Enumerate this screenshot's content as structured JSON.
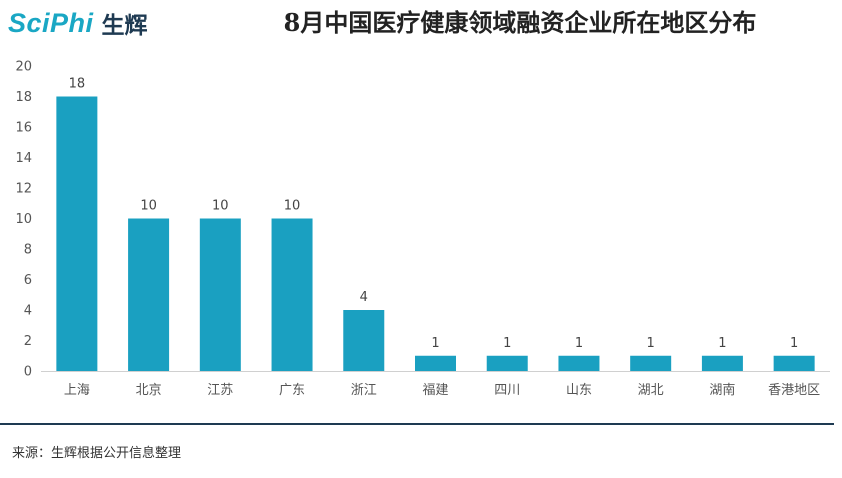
{
  "header": {
    "logo_word": "SciPhi",
    "logo_cn": "生辉",
    "title": "8月中国医疗健康领域融资企业所在地区分布"
  },
  "footer": {
    "source": "来源：生辉根据公开信息整理"
  },
  "colors": {
    "bar": "#1aa0c1",
    "brand": "#1aa7c4",
    "rule": "#1e3a52"
  },
  "chart_data": {
    "type": "bar",
    "title": "8月中国医疗健康领域融资企业所在地区分布",
    "categories": [
      "上海",
      "北京",
      "江苏",
      "广东",
      "浙江",
      "福建",
      "四川",
      "山东",
      "湖北",
      "湖南",
      "香港地区"
    ],
    "values": [
      18,
      10,
      10,
      10,
      4,
      1,
      1,
      1,
      1,
      1,
      1
    ],
    "ylim": [
      0,
      20
    ],
    "yticks": [
      0,
      2,
      4,
      6,
      8,
      10,
      12,
      14,
      16,
      18,
      20
    ],
    "xlabel": "",
    "ylabel": "",
    "grid": false,
    "data_labels": true
  }
}
